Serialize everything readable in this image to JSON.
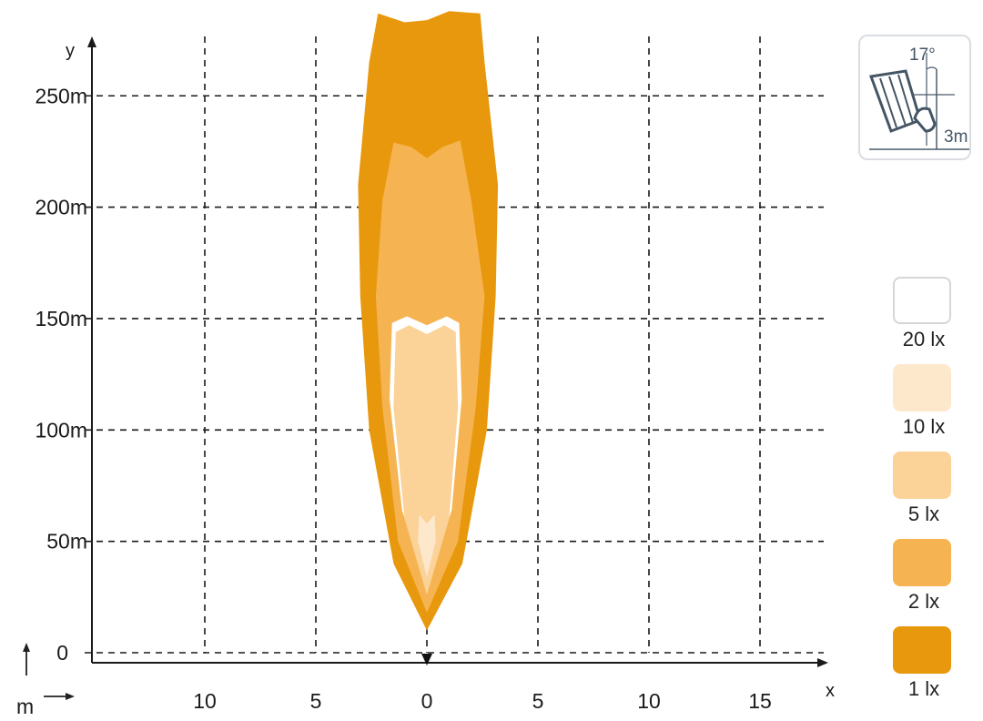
{
  "chart_data": {
    "type": "area",
    "title": "",
    "xlabel": "x",
    "ylabel": "y",
    "x_ticks": [
      {
        "value": -10,
        "label": "10"
      },
      {
        "value": -5,
        "label": "5"
      },
      {
        "value": 0,
        "label": "0"
      },
      {
        "value": 5,
        "label": "5"
      },
      {
        "value": 10,
        "label": "10"
      },
      {
        "value": 15,
        "label": "15"
      }
    ],
    "y_ticks": [
      {
        "value": 0,
        "label": "0"
      },
      {
        "value": 50,
        "label": "50m"
      },
      {
        "value": 100,
        "label": "100m"
      },
      {
        "value": 150,
        "label": "150m"
      },
      {
        "value": 200,
        "label": "200m"
      },
      {
        "value": 250,
        "label": "250m"
      }
    ],
    "xlim": [
      -15,
      18
    ],
    "ylim": [
      -5,
      290
    ],
    "grid": true,
    "unit_hint": "m",
    "legend_position": "right",
    "series": [
      {
        "name": "1 lx",
        "color": "#e8980c",
        "boundary": [
          [
            0,
            10
          ],
          [
            -1.5,
            40
          ],
          [
            -2.6,
            100
          ],
          [
            -3.0,
            160
          ],
          [
            -3.1,
            210
          ],
          [
            -2.6,
            265
          ],
          [
            -2.2,
            287
          ],
          [
            -1.0,
            283
          ],
          [
            0,
            284
          ],
          [
            1.0,
            288
          ],
          [
            2.4,
            287
          ],
          [
            2.6,
            265
          ],
          [
            3.2,
            210
          ],
          [
            3.1,
            160
          ],
          [
            2.7,
            100
          ],
          [
            1.6,
            40
          ],
          [
            0,
            10
          ]
        ]
      },
      {
        "name": "2 lx",
        "color": "#f5b451",
        "boundary": [
          [
            0,
            18
          ],
          [
            -1.3,
            50
          ],
          [
            -2.0,
            110
          ],
          [
            -2.3,
            160
          ],
          [
            -2.0,
            203
          ],
          [
            -1.5,
            229
          ],
          [
            -0.7,
            227
          ],
          [
            0,
            222
          ],
          [
            0.7,
            227
          ],
          [
            1.5,
            230
          ],
          [
            2.0,
            203
          ],
          [
            2.6,
            160
          ],
          [
            2.2,
            110
          ],
          [
            1.4,
            50
          ],
          [
            0,
            18
          ]
        ]
      },
      {
        "name": "5 lx",
        "color": "#fbd297",
        "boundary": [
          [
            0,
            26
          ],
          [
            -1.0,
            60
          ],
          [
            -1.5,
            110
          ],
          [
            -1.4,
            144
          ],
          [
            -0.8,
            147
          ],
          [
            0,
            143
          ],
          [
            0.8,
            147
          ],
          [
            1.3,
            144
          ],
          [
            1.4,
            110
          ],
          [
            1.0,
            60
          ],
          [
            0,
            26
          ]
        ]
      },
      {
        "name": "10 lx",
        "color": "#fde8cc",
        "boundary": [
          [
            0,
            34
          ],
          [
            -0.4,
            50
          ],
          [
            -0.35,
            62
          ],
          [
            0,
            58
          ],
          [
            0.35,
            62
          ],
          [
            0.4,
            50
          ],
          [
            0,
            34
          ]
        ]
      },
      {
        "name": "20 lx",
        "color": "#ffffff",
        "boundary": []
      }
    ]
  },
  "mount": {
    "angle_label": "17°",
    "height_label": "3m"
  },
  "legend": [
    {
      "label": "20 lx",
      "color": "#ffffff"
    },
    {
      "label": "10 lx",
      "color": "#fde8cc"
    },
    {
      "label": "5 lx",
      "color": "#fbd297"
    },
    {
      "label": "2 lx",
      "color": "#f5b451"
    },
    {
      "label": "1 lx",
      "color": "#e8980c"
    }
  ]
}
